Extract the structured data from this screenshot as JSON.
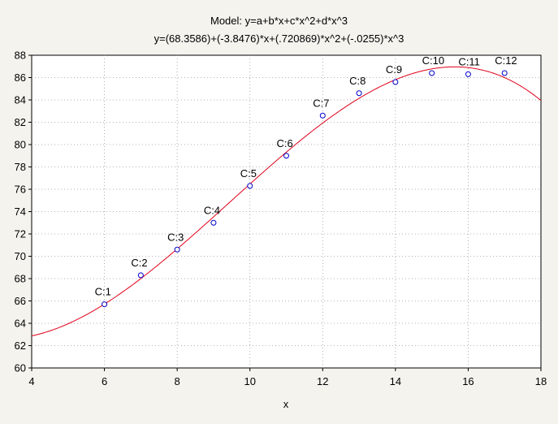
{
  "chart_data": {
    "type": "scatter",
    "title": "Model: y=a+b*x+c*x^2+d*x^3",
    "subtitle": "y=(68.3586)+(-3.8476)*x+(.720869)*x^2+(-.0255)*x^3",
    "xlabel": "x",
    "ylabel": "",
    "xlim": [
      4,
      18
    ],
    "ylim": [
      60,
      88
    ],
    "xticks": [
      "4",
      "6",
      "8",
      "10",
      "12",
      "14",
      "16",
      "18"
    ],
    "yticks": [
      "60",
      "62",
      "64",
      "66",
      "68",
      "70",
      "72",
      "74",
      "76",
      "78",
      "80",
      "82",
      "84",
      "86",
      "88"
    ],
    "grid": true,
    "model": {
      "a": 68.3586,
      "b": -3.8476,
      "c": 0.720869,
      "d": -0.0255
    },
    "points": [
      {
        "label": "C:1",
        "x": 6,
        "y": 65.7
      },
      {
        "label": "C:2",
        "x": 7,
        "y": 68.3
      },
      {
        "label": "C:3",
        "x": 8,
        "y": 70.6
      },
      {
        "label": "C:4",
        "x": 9,
        "y": 73.0
      },
      {
        "label": "C:5",
        "x": 10,
        "y": 76.3
      },
      {
        "label": "C:6",
        "x": 11,
        "y": 79.0
      },
      {
        "label": "C:7",
        "x": 12,
        "y": 82.6
      },
      {
        "label": "C:8",
        "x": 13,
        "y": 84.6
      },
      {
        "label": "C:9",
        "x": 14,
        "y": 85.6
      },
      {
        "label": "C:10",
        "x": 15,
        "y": 86.4
      },
      {
        "label": "C:11",
        "x": 16,
        "y": 86.3
      },
      {
        "label": "C:12",
        "x": 17,
        "y": 86.4
      }
    ],
    "colors": {
      "fit_line": "#e0001a",
      "points": "#0000cc",
      "background": "#f4f3ee",
      "plot_area": "#ffffff"
    }
  }
}
